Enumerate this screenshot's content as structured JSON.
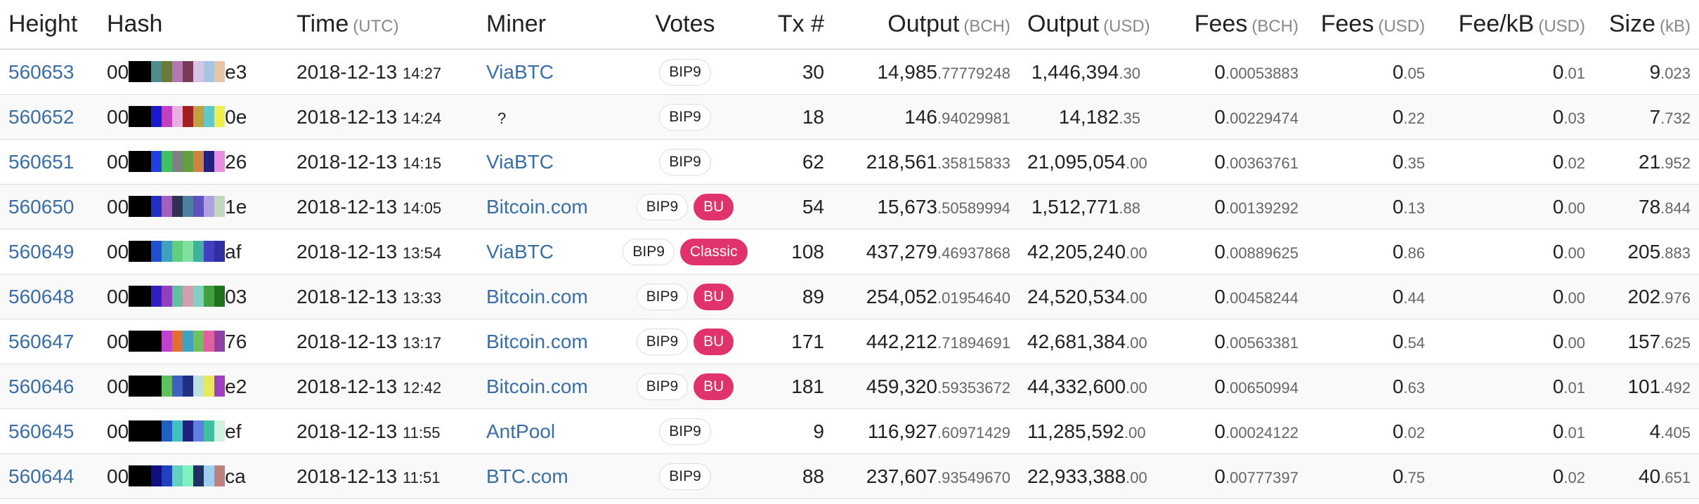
{
  "header": [
    {
      "label": "Height"
    },
    {
      "label": "Hash"
    },
    {
      "label": "Time",
      "unit": "(UTC)"
    },
    {
      "label": "Miner"
    },
    {
      "label": "Votes"
    },
    {
      "label": "Tx #"
    },
    {
      "label": "Output",
      "unit": "(BCH)"
    },
    {
      "label": "Output",
      "unit": "(USD)"
    },
    {
      "label": "Fees",
      "unit": "(BCH)"
    },
    {
      "label": "Fees",
      "unit": "(USD)"
    },
    {
      "label": "Fee/kB",
      "unit": "(USD)"
    },
    {
      "label": "Size",
      "unit": "(kB)"
    }
  ],
  "rows": [
    {
      "height": "560653",
      "hash": {
        "prefix": "00",
        "colors": [
          "#000000",
          "#4f8c8c",
          "#6b7a3a",
          "#b07ab0",
          "#7a3a5a",
          "#d6c6e6",
          "#a6c6e6",
          "#e6c6a6"
        ],
        "suffix": "e3"
      },
      "time": {
        "date": "2018-12-13",
        "clock": "14:27"
      },
      "miner": "ViaBTC",
      "votes": [
        "BIP9"
      ],
      "tx": "30",
      "output_bch": [
        "14,985",
        ".77779248"
      ],
      "output_usd": [
        "1,446,394",
        ".30"
      ],
      "fees_bch": [
        "0",
        ".00053883"
      ],
      "fees_usd": [
        "0",
        ".05"
      ],
      "fee_kb": [
        "0",
        ".01"
      ],
      "size": [
        "9",
        ".023"
      ]
    },
    {
      "height": "560652",
      "hash": {
        "prefix": "00",
        "colors": [
          "#000000",
          "#1a1acc",
          "#c040c0",
          "#e8b0e0",
          "#a02020",
          "#c0a040",
          "#60c8c8",
          "#eeee50"
        ],
        "suffix": "0e"
      },
      "time": {
        "date": "2018-12-13",
        "clock": "14:24"
      },
      "miner": "?",
      "votes": [
        "BIP9"
      ],
      "tx": "18",
      "output_bch": [
        "146",
        ".94029981"
      ],
      "output_usd": [
        "14,182",
        ".35"
      ],
      "fees_bch": [
        "0",
        ".00229474"
      ],
      "fees_usd": [
        "0",
        ".22"
      ],
      "fee_kb": [
        "0",
        ".03"
      ],
      "size": [
        "7",
        ".732"
      ]
    },
    {
      "height": "560651",
      "hash": {
        "prefix": "00",
        "colors": [
          "#000000",
          "#2040e0",
          "#40c060",
          "#808080",
          "#60a040",
          "#d08040",
          "#202080",
          "#e890e0"
        ],
        "suffix": "26"
      },
      "time": {
        "date": "2018-12-13",
        "clock": "14:15"
      },
      "miner": "ViaBTC",
      "votes": [
        "BIP9"
      ],
      "tx": "62",
      "output_bch": [
        "218,561",
        ".35815833"
      ],
      "output_usd": [
        "21,095,054",
        ".00"
      ],
      "fees_bch": [
        "0",
        ".00363761"
      ],
      "fees_usd": [
        "0",
        ".35"
      ],
      "fee_kb": [
        "0",
        ".02"
      ],
      "size": [
        "21",
        ".952"
      ]
    },
    {
      "height": "560650",
      "hash": {
        "prefix": "00",
        "colors": [
          "#000000",
          "#2030c0",
          "#a060c0",
          "#303050",
          "#5080a0",
          "#6050c0",
          "#b0a0e0",
          "#c0d8c0"
        ],
        "suffix": "1e"
      },
      "time": {
        "date": "2018-12-13",
        "clock": "14:05"
      },
      "miner": "Bitcoin.com",
      "votes": [
        "BIP9",
        "BU"
      ],
      "tx": "54",
      "output_bch": [
        "15,673",
        ".50589994"
      ],
      "output_usd": [
        "1,512,771",
        ".88"
      ],
      "fees_bch": [
        "0",
        ".00139292"
      ],
      "fees_usd": [
        "0",
        ".13"
      ],
      "fee_kb": [
        "0",
        ".00"
      ],
      "size": [
        "78",
        ".844"
      ]
    },
    {
      "height": "560649",
      "hash": {
        "prefix": "00",
        "colors": [
          "#000000",
          "#2050d0",
          "#40a0c0",
          "#60d080",
          "#80e0a0",
          "#40b0a0",
          "#4040c0",
          "#3030a0"
        ],
        "suffix": "af"
      },
      "time": {
        "date": "2018-12-13",
        "clock": "13:54"
      },
      "miner": "ViaBTC",
      "votes": [
        "BIP9",
        "Classic"
      ],
      "tx": "108",
      "output_bch": [
        "437,279",
        ".46937868"
      ],
      "output_usd": [
        "42,205,240",
        ".00"
      ],
      "fees_bch": [
        "0",
        ".00889625"
      ],
      "fees_usd": [
        "0",
        ".86"
      ],
      "fee_kb": [
        "0",
        ".00"
      ],
      "size": [
        "205",
        ".883"
      ]
    },
    {
      "height": "560648",
      "hash": {
        "prefix": "00",
        "colors": [
          "#000000",
          "#3020c0",
          "#9040c0",
          "#60c0a0",
          "#d0a0b0",
          "#80d0c0",
          "#40a040",
          "#207020"
        ],
        "suffix": "03"
      },
      "time": {
        "date": "2018-12-13",
        "clock": "13:33"
      },
      "miner": "Bitcoin.com",
      "votes": [
        "BIP9",
        "BU"
      ],
      "tx": "89",
      "output_bch": [
        "254,052",
        ".01954640"
      ],
      "output_usd": [
        "24,520,534",
        ".00"
      ],
      "fees_bch": [
        "0",
        ".00458244"
      ],
      "fees_usd": [
        "0",
        ".44"
      ],
      "fee_kb": [
        "0",
        ".00"
      ],
      "size": [
        "202",
        ".976"
      ]
    },
    {
      "height": "560647",
      "hash": {
        "prefix": "00",
        "colors": [
          "#000000",
          "#000000",
          "#c040d0",
          "#e07030",
          "#40a0c0",
          "#70c060",
          "#e060a0",
          "#9040a0"
        ],
        "suffix": "76"
      },
      "time": {
        "date": "2018-12-13",
        "clock": "13:17"
      },
      "miner": "Bitcoin.com",
      "votes": [
        "BIP9",
        "BU"
      ],
      "tx": "171",
      "output_bch": [
        "442,212",
        ".71894691"
      ],
      "output_usd": [
        "42,681,384",
        ".00"
      ],
      "fees_bch": [
        "0",
        ".00563381"
      ],
      "fees_usd": [
        "0",
        ".54"
      ],
      "fee_kb": [
        "0",
        ".00"
      ],
      "size": [
        "157",
        ".625"
      ]
    },
    {
      "height": "560646",
      "hash": {
        "prefix": "00",
        "colors": [
          "#000000",
          "#000000",
          "#60c060",
          "#4060c0",
          "#203080",
          "#c0e0e0",
          "#e8e860",
          "#a040c0"
        ],
        "suffix": "e2"
      },
      "time": {
        "date": "2018-12-13",
        "clock": "12:42"
      },
      "miner": "Bitcoin.com",
      "votes": [
        "BIP9",
        "BU"
      ],
      "tx": "181",
      "output_bch": [
        "459,320",
        ".59353672"
      ],
      "output_usd": [
        "44,332,600",
        ".00"
      ],
      "fees_bch": [
        "0",
        ".00650994"
      ],
      "fees_usd": [
        "0",
        ".63"
      ],
      "fee_kb": [
        "0",
        ".01"
      ],
      "size": [
        "101",
        ".492"
      ]
    },
    {
      "height": "560645",
      "hash": {
        "prefix": "00",
        "colors": [
          "#000000",
          "#000000",
          "#2060c0",
          "#40c0c0",
          "#202080",
          "#6080e0",
          "#40c0a0",
          "#d0f0e0"
        ],
        "suffix": "ef"
      },
      "time": {
        "date": "2018-12-13",
        "clock": "11:55"
      },
      "miner": "AntPool",
      "votes": [
        "BIP9"
      ],
      "tx": "9",
      "output_bch": [
        "116,927",
        ".60971429"
      ],
      "output_usd": [
        "11,285,592",
        ".00"
      ],
      "fees_bch": [
        "0",
        ".00024122"
      ],
      "fees_usd": [
        "0",
        ".02"
      ],
      "fee_kb": [
        "0",
        ".01"
      ],
      "size": [
        "4",
        ".405"
      ]
    },
    {
      "height": "560644",
      "hash": {
        "prefix": "00",
        "colors": [
          "#000000",
          "#101080",
          "#2040c0",
          "#60d0c0",
          "#80f0c0",
          "#203060",
          "#a0d0f0",
          "#c08080"
        ],
        "suffix": "ca"
      },
      "time": {
        "date": "2018-12-13",
        "clock": "11:51"
      },
      "miner": "BTC.com",
      "votes": [
        "BIP9"
      ],
      "tx": "88",
      "output_bch": [
        "237,607",
        ".93549670"
      ],
      "output_usd": [
        "22,933,388",
        ".00"
      ],
      "fees_bch": [
        "0",
        ".00777397"
      ],
      "fees_usd": [
        "0",
        ".75"
      ],
      "fee_kb": [
        "0",
        ".02"
      ],
      "size": [
        "40",
        ".651"
      ]
    }
  ]
}
